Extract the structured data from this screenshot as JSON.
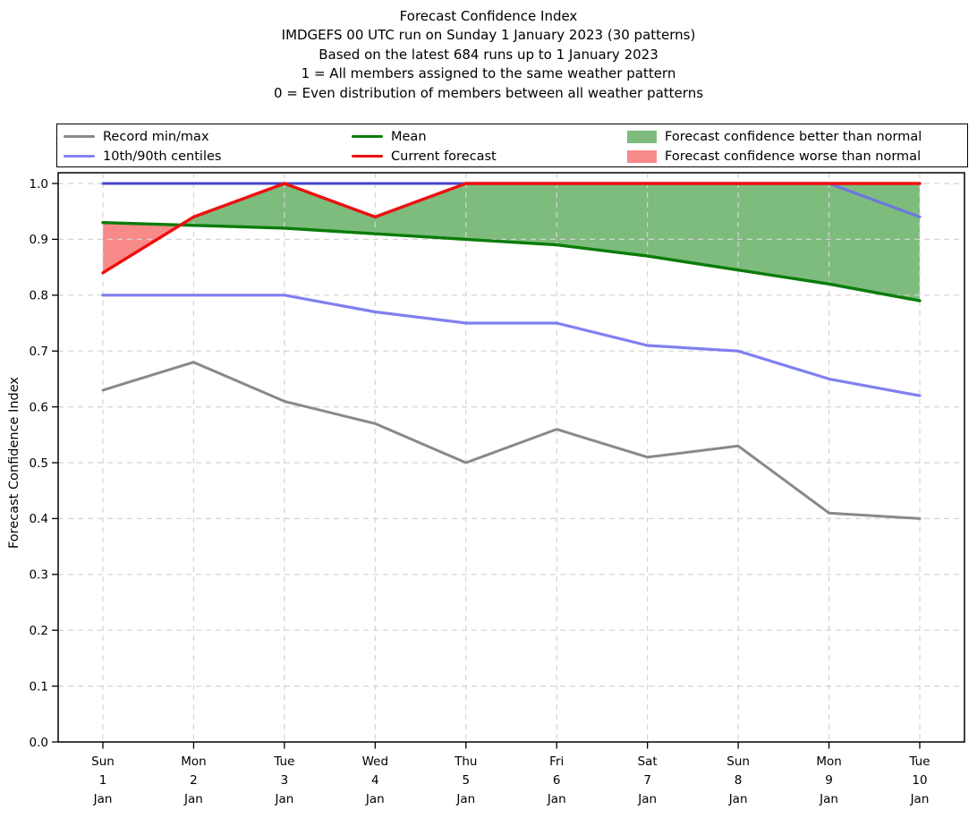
{
  "header": {
    "title_lines": [
      "Forecast Confidence Index",
      "IMDGEFS 00 UTC run on Sunday 1 January 2023 (30 patterns)",
      "Based on the latest 684 runs up to 1 January 2023",
      "1 = All members assigned to the same weather pattern",
      "0 = Even distribution of members between all weather patterns"
    ]
  },
  "legend": {
    "items": [
      {
        "label": "Record min/max",
        "swatch": "line",
        "color": "#898989"
      },
      {
        "label": "10th/90th centiles",
        "swatch": "line",
        "color": "#8383f2"
      },
      {
        "label": "Mean",
        "swatch": "line",
        "color": "#0a7c0a"
      },
      {
        "label": "Current forecast",
        "swatch": "line",
        "color": "#ee0f0f"
      },
      {
        "label": "Forecast confidence better than normal",
        "swatch": "patch",
        "color": "#7dbc7d"
      },
      {
        "label": "Forecast confidence worse than normal",
        "swatch": "patch",
        "color": "#f98a8a"
      }
    ]
  },
  "chart_data": {
    "type": "line",
    "title": "Forecast Confidence Index",
    "ylabel": "Forecast Confidence Index",
    "ylim": [
      0.0,
      1.02
    ],
    "grid": true,
    "legend_position": "top",
    "x_categories": [
      {
        "dow": "Sun",
        "day": "1",
        "mon": "Jan"
      },
      {
        "dow": "Mon",
        "day": "2",
        "mon": "Jan"
      },
      {
        "dow": "Tue",
        "day": "3",
        "mon": "Jan"
      },
      {
        "dow": "Wed",
        "day": "4",
        "mon": "Jan"
      },
      {
        "dow": "Thu",
        "day": "5",
        "mon": "Jan"
      },
      {
        "dow": "Fri",
        "day": "6",
        "mon": "Jan"
      },
      {
        "dow": "Sat",
        "day": "7",
        "mon": "Jan"
      },
      {
        "dow": "Sun",
        "day": "8",
        "mon": "Jan"
      },
      {
        "dow": "Mon",
        "day": "9",
        "mon": "Jan"
      },
      {
        "dow": "Tue",
        "day": "10",
        "mon": "Jan"
      }
    ],
    "y_tick_labels": [
      "0.0",
      "0.1",
      "0.2",
      "0.3",
      "0.4",
      "0.5",
      "0.6",
      "0.7",
      "0.8",
      "0.9",
      "1.0"
    ],
    "series": [
      {
        "name": "Record max",
        "color": "#898989",
        "width": 3.0,
        "values": [
          1.0,
          1.0,
          1.0,
          1.0,
          1.0,
          1.0,
          1.0,
          1.0,
          1.0,
          1.0
        ]
      },
      {
        "name": "Record min",
        "color": "#898989",
        "width": 3.0,
        "values": [
          0.63,
          0.68,
          0.61,
          0.57,
          0.5,
          0.56,
          0.51,
          0.53,
          0.41,
          0.4
        ]
      },
      {
        "name": "10th centile",
        "color": "#6a6aee",
        "width": 3.2,
        "values": [
          0.8,
          0.8,
          0.8,
          0.77,
          0.75,
          0.75,
          0.71,
          0.7,
          0.65,
          0.62
        ]
      },
      {
        "name": "90th centile",
        "color": "#6a6aee",
        "width": 3.2,
        "values": [
          1.0,
          1.0,
          1.0,
          1.0,
          1.0,
          1.0,
          1.0,
          1.0,
          1.0,
          0.94
        ]
      },
      {
        "name": "Mean",
        "color": "#0a7c0a",
        "width": 3.4,
        "values": [
          0.93,
          0.925,
          0.92,
          0.91,
          0.9,
          0.89,
          0.87,
          0.845,
          0.82,
          0.79
        ]
      },
      {
        "name": "Current forecast",
        "color": "#ee0f0f",
        "width": 3.4,
        "values": [
          0.84,
          0.94,
          1.0,
          0.94,
          1.0,
          1.0,
          1.0,
          1.0,
          1.0,
          1.0
        ]
      }
    ],
    "fills": [
      {
        "name": "better_than_normal",
        "between": [
          "Current forecast",
          "Mean"
        ],
        "where": "forecast_above_mean",
        "color": "#7dbc7d"
      },
      {
        "name": "worse_than_normal",
        "between": [
          "Current forecast",
          "Mean"
        ],
        "where": "forecast_below_mean",
        "color": "#f98a8a"
      }
    ]
  }
}
